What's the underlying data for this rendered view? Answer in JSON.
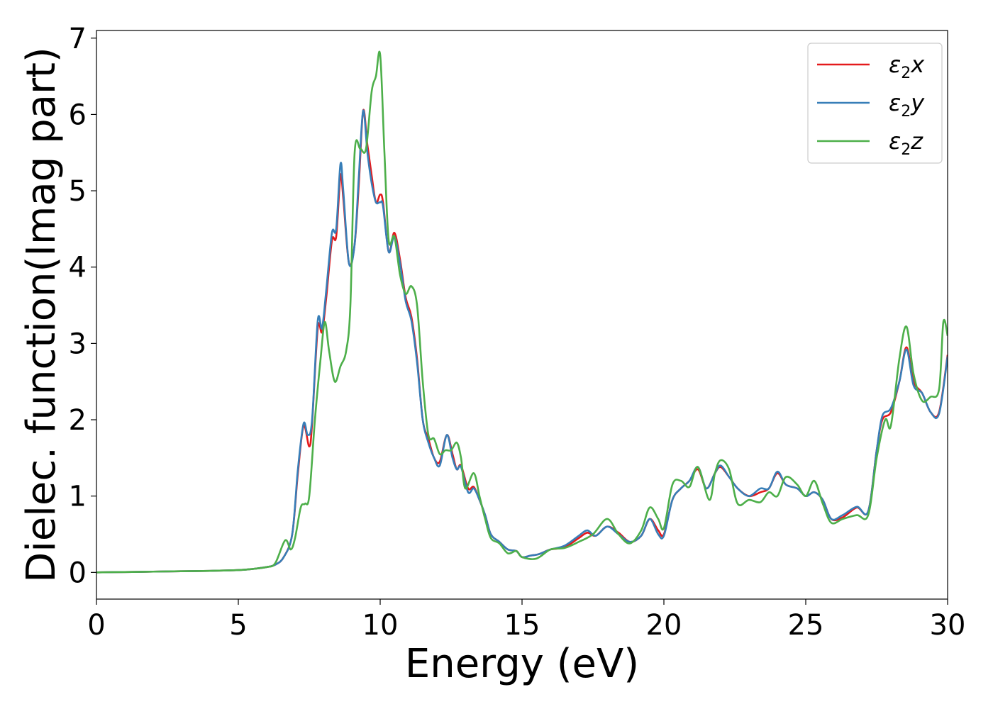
{
  "chart_data": {
    "type": "line",
    "xlabel": "Energy (eV)",
    "ylabel": "Dielec. function(Imag part)",
    "xlim": [
      0,
      30
    ],
    "ylim": [
      -0.35,
      7.1
    ],
    "xticks": [
      0,
      5,
      10,
      15,
      20,
      25,
      30
    ],
    "xtick_labels": [
      "0",
      "5",
      "10",
      "15",
      "20",
      "25",
      "30"
    ],
    "yticks": [
      0,
      1,
      2,
      3,
      4,
      5,
      6,
      7
    ],
    "ytick_labels": [
      "0",
      "1",
      "2",
      "3",
      "4",
      "5",
      "6",
      "7"
    ],
    "grid": false,
    "legend_position": "top-right",
    "series": [
      {
        "name": "ε2x",
        "legend": {
          "base": "ε",
          "sub": "2",
          "axis": "x"
        },
        "color": "#e41a1c",
        "points": [
          [
            0,
            0.0
          ],
          [
            1,
            0.005
          ],
          [
            2,
            0.01
          ],
          [
            3,
            0.015
          ],
          [
            4,
            0.02
          ],
          [
            5,
            0.03
          ],
          [
            5.5,
            0.045
          ],
          [
            6,
            0.07
          ],
          [
            6.3,
            0.1
          ],
          [
            6.6,
            0.2
          ],
          [
            6.9,
            0.5
          ],
          [
            7.1,
            1.3
          ],
          [
            7.3,
            1.92
          ],
          [
            7.5,
            1.65
          ],
          [
            7.6,
            1.95
          ],
          [
            7.8,
            3.2
          ],
          [
            7.95,
            3.15
          ],
          [
            8.1,
            3.6
          ],
          [
            8.3,
            4.35
          ],
          [
            8.45,
            4.4
          ],
          [
            8.6,
            5.2
          ],
          [
            8.7,
            4.9
          ],
          [
            8.9,
            4.05
          ],
          [
            9.1,
            4.3
          ],
          [
            9.25,
            5.1
          ],
          [
            9.4,
            6.05
          ],
          [
            9.55,
            5.6
          ],
          [
            9.7,
            5.2
          ],
          [
            9.85,
            4.85
          ],
          [
            10.0,
            4.95
          ],
          [
            10.1,
            4.85
          ],
          [
            10.3,
            4.2
          ],
          [
            10.5,
            4.45
          ],
          [
            10.7,
            4.1
          ],
          [
            10.9,
            3.6
          ],
          [
            11.1,
            3.35
          ],
          [
            11.3,
            2.8
          ],
          [
            11.5,
            2.0
          ],
          [
            11.7,
            1.75
          ],
          [
            11.9,
            1.5
          ],
          [
            12.1,
            1.45
          ],
          [
            12.35,
            1.8
          ],
          [
            12.55,
            1.55
          ],
          [
            12.7,
            1.35
          ],
          [
            12.85,
            1.4
          ],
          [
            13.1,
            1.1
          ],
          [
            13.3,
            1.12
          ],
          [
            13.5,
            0.95
          ],
          [
            13.7,
            0.75
          ],
          [
            13.9,
            0.5
          ],
          [
            14.2,
            0.4
          ],
          [
            14.5,
            0.3
          ],
          [
            14.8,
            0.28
          ],
          [
            15.0,
            0.2
          ],
          [
            15.3,
            0.22
          ],
          [
            15.6,
            0.24
          ],
          [
            16.0,
            0.3
          ],
          [
            16.5,
            0.33
          ],
          [
            17.0,
            0.45
          ],
          [
            17.3,
            0.52
          ],
          [
            17.6,
            0.48
          ],
          [
            18.0,
            0.6
          ],
          [
            18.4,
            0.52
          ],
          [
            18.8,
            0.4
          ],
          [
            19.2,
            0.48
          ],
          [
            19.5,
            0.7
          ],
          [
            19.8,
            0.55
          ],
          [
            20.0,
            0.5
          ],
          [
            20.3,
            0.95
          ],
          [
            20.6,
            1.1
          ],
          [
            20.9,
            1.2
          ],
          [
            21.2,
            1.35
          ],
          [
            21.5,
            1.1
          ],
          [
            21.8,
            1.3
          ],
          [
            22.0,
            1.38
          ],
          [
            22.3,
            1.25
          ],
          [
            22.6,
            1.1
          ],
          [
            23.0,
            1.0
          ],
          [
            23.4,
            1.05
          ],
          [
            23.7,
            1.1
          ],
          [
            24.0,
            1.3
          ],
          [
            24.3,
            1.15
          ],
          [
            24.7,
            1.1
          ],
          [
            25.0,
            1.0
          ],
          [
            25.3,
            1.05
          ],
          [
            25.6,
            0.95
          ],
          [
            25.9,
            0.7
          ],
          [
            26.3,
            0.72
          ],
          [
            26.8,
            0.85
          ],
          [
            27.2,
            0.8
          ],
          [
            27.5,
            1.6
          ],
          [
            27.7,
            2.0
          ],
          [
            28.0,
            2.1
          ],
          [
            28.3,
            2.5
          ],
          [
            28.55,
            2.95
          ],
          [
            28.8,
            2.5
          ],
          [
            29.1,
            2.35
          ],
          [
            29.4,
            2.1
          ],
          [
            29.7,
            2.1
          ],
          [
            30.0,
            2.85
          ]
        ]
      },
      {
        "name": "ε2y",
        "legend": {
          "base": "ε",
          "sub": "2",
          "axis": "y"
        },
        "color": "#377eb8",
        "points": [
          [
            0,
            0.0
          ],
          [
            1,
            0.005
          ],
          [
            2,
            0.01
          ],
          [
            3,
            0.015
          ],
          [
            4,
            0.02
          ],
          [
            5,
            0.03
          ],
          [
            5.5,
            0.045
          ],
          [
            6,
            0.07
          ],
          [
            6.3,
            0.1
          ],
          [
            6.6,
            0.2
          ],
          [
            6.9,
            0.5
          ],
          [
            7.1,
            1.35
          ],
          [
            7.3,
            1.95
          ],
          [
            7.45,
            1.8
          ],
          [
            7.6,
            2.0
          ],
          [
            7.8,
            3.3
          ],
          [
            7.95,
            3.2
          ],
          [
            8.1,
            3.7
          ],
          [
            8.3,
            4.45
          ],
          [
            8.45,
            4.5
          ],
          [
            8.6,
            5.35
          ],
          [
            8.7,
            5.0
          ],
          [
            8.9,
            4.05
          ],
          [
            9.1,
            4.3
          ],
          [
            9.25,
            5.2
          ],
          [
            9.4,
            6.05
          ],
          [
            9.55,
            5.5
          ],
          [
            9.7,
            5.1
          ],
          [
            9.85,
            4.85
          ],
          [
            10.0,
            4.85
          ],
          [
            10.1,
            4.8
          ],
          [
            10.3,
            4.2
          ],
          [
            10.5,
            4.4
          ],
          [
            10.7,
            4.05
          ],
          [
            10.9,
            3.55
          ],
          [
            11.1,
            3.3
          ],
          [
            11.3,
            2.75
          ],
          [
            11.5,
            2.0
          ],
          [
            11.7,
            1.7
          ],
          [
            11.9,
            1.5
          ],
          [
            12.1,
            1.4
          ],
          [
            12.35,
            1.8
          ],
          [
            12.55,
            1.5
          ],
          [
            12.7,
            1.35
          ],
          [
            12.85,
            1.38
          ],
          [
            13.1,
            1.05
          ],
          [
            13.3,
            1.1
          ],
          [
            13.5,
            0.95
          ],
          [
            13.7,
            0.75
          ],
          [
            13.9,
            0.5
          ],
          [
            14.2,
            0.4
          ],
          [
            14.5,
            0.3
          ],
          [
            14.8,
            0.28
          ],
          [
            15.0,
            0.2
          ],
          [
            15.3,
            0.22
          ],
          [
            15.6,
            0.24
          ],
          [
            16.0,
            0.3
          ],
          [
            16.5,
            0.35
          ],
          [
            17.0,
            0.48
          ],
          [
            17.3,
            0.55
          ],
          [
            17.6,
            0.48
          ],
          [
            18.0,
            0.6
          ],
          [
            18.4,
            0.5
          ],
          [
            18.8,
            0.4
          ],
          [
            19.2,
            0.48
          ],
          [
            19.5,
            0.7
          ],
          [
            19.8,
            0.5
          ],
          [
            20.0,
            0.48
          ],
          [
            20.3,
            0.95
          ],
          [
            20.6,
            1.1
          ],
          [
            20.9,
            1.2
          ],
          [
            21.2,
            1.38
          ],
          [
            21.5,
            1.1
          ],
          [
            21.8,
            1.3
          ],
          [
            22.0,
            1.4
          ],
          [
            22.3,
            1.25
          ],
          [
            22.6,
            1.1
          ],
          [
            23.0,
            1.0
          ],
          [
            23.4,
            1.1
          ],
          [
            23.7,
            1.1
          ],
          [
            24.0,
            1.32
          ],
          [
            24.3,
            1.15
          ],
          [
            24.7,
            1.1
          ],
          [
            25.0,
            1.0
          ],
          [
            25.3,
            1.05
          ],
          [
            25.6,
            0.95
          ],
          [
            25.9,
            0.7
          ],
          [
            26.3,
            0.75
          ],
          [
            26.8,
            0.86
          ],
          [
            27.2,
            0.8
          ],
          [
            27.5,
            1.6
          ],
          [
            27.7,
            2.05
          ],
          [
            28.0,
            2.15
          ],
          [
            28.3,
            2.5
          ],
          [
            28.55,
            2.92
          ],
          [
            28.8,
            2.45
          ],
          [
            29.1,
            2.35
          ],
          [
            29.4,
            2.1
          ],
          [
            29.7,
            2.08
          ],
          [
            30.0,
            2.83
          ]
        ]
      },
      {
        "name": "ε2z",
        "legend": {
          "base": "ε",
          "sub": "2",
          "axis": "z"
        },
        "color": "#4daf4a",
        "points": [
          [
            0,
            0.0
          ],
          [
            1,
            0.005
          ],
          [
            2,
            0.01
          ],
          [
            3,
            0.015
          ],
          [
            4,
            0.02
          ],
          [
            5,
            0.03
          ],
          [
            5.5,
            0.045
          ],
          [
            6,
            0.07
          ],
          [
            6.3,
            0.12
          ],
          [
            6.65,
            0.42
          ],
          [
            6.85,
            0.3
          ],
          [
            7.0,
            0.45
          ],
          [
            7.2,
            0.85
          ],
          [
            7.35,
            0.9
          ],
          [
            7.5,
            1.0
          ],
          [
            7.7,
            2.0
          ],
          [
            7.9,
            2.8
          ],
          [
            8.05,
            3.28
          ],
          [
            8.2,
            2.9
          ],
          [
            8.4,
            2.5
          ],
          [
            8.6,
            2.7
          ],
          [
            8.8,
            2.9
          ],
          [
            8.95,
            3.5
          ],
          [
            9.1,
            5.5
          ],
          [
            9.3,
            5.55
          ],
          [
            9.5,
            5.55
          ],
          [
            9.7,
            6.3
          ],
          [
            9.85,
            6.5
          ],
          [
            10.0,
            6.78
          ],
          [
            10.15,
            5.5
          ],
          [
            10.3,
            4.35
          ],
          [
            10.5,
            4.4
          ],
          [
            10.7,
            3.9
          ],
          [
            10.9,
            3.65
          ],
          [
            11.1,
            3.75
          ],
          [
            11.3,
            3.5
          ],
          [
            11.5,
            2.5
          ],
          [
            11.7,
            1.8
          ],
          [
            11.9,
            1.75
          ],
          [
            12.1,
            1.55
          ],
          [
            12.3,
            1.6
          ],
          [
            12.5,
            1.6
          ],
          [
            12.7,
            1.7
          ],
          [
            12.85,
            1.5
          ],
          [
            13.0,
            1.1
          ],
          [
            13.3,
            1.3
          ],
          [
            13.5,
            1.0
          ],
          [
            13.7,
            0.7
          ],
          [
            13.9,
            0.45
          ],
          [
            14.2,
            0.38
          ],
          [
            14.5,
            0.25
          ],
          [
            14.8,
            0.28
          ],
          [
            15.0,
            0.2
          ],
          [
            15.5,
            0.18
          ],
          [
            16.0,
            0.3
          ],
          [
            16.5,
            0.32
          ],
          [
            17.0,
            0.4
          ],
          [
            17.5,
            0.5
          ],
          [
            18.0,
            0.7
          ],
          [
            18.4,
            0.5
          ],
          [
            18.8,
            0.38
          ],
          [
            19.2,
            0.55
          ],
          [
            19.5,
            0.85
          ],
          [
            19.8,
            0.7
          ],
          [
            20.0,
            0.58
          ],
          [
            20.3,
            1.15
          ],
          [
            20.6,
            1.2
          ],
          [
            20.9,
            1.12
          ],
          [
            21.2,
            1.38
          ],
          [
            21.6,
            0.95
          ],
          [
            21.8,
            1.3
          ],
          [
            22.0,
            1.47
          ],
          [
            22.3,
            1.35
          ],
          [
            22.6,
            0.9
          ],
          [
            23.0,
            0.95
          ],
          [
            23.4,
            0.92
          ],
          [
            23.7,
            1.05
          ],
          [
            24.0,
            1.0
          ],
          [
            24.3,
            1.25
          ],
          [
            24.7,
            1.15
          ],
          [
            25.0,
            1.0
          ],
          [
            25.3,
            1.2
          ],
          [
            25.6,
            0.9
          ],
          [
            25.9,
            0.65
          ],
          [
            26.3,
            0.7
          ],
          [
            26.8,
            0.75
          ],
          [
            27.2,
            0.75
          ],
          [
            27.5,
            1.5
          ],
          [
            27.8,
            2.0
          ],
          [
            28.0,
            1.92
          ],
          [
            28.3,
            2.8
          ],
          [
            28.55,
            3.22
          ],
          [
            28.8,
            2.6
          ],
          [
            29.1,
            2.25
          ],
          [
            29.4,
            2.3
          ],
          [
            29.7,
            2.4
          ],
          [
            29.85,
            3.28
          ],
          [
            30.0,
            3.1
          ]
        ]
      }
    ]
  }
}
